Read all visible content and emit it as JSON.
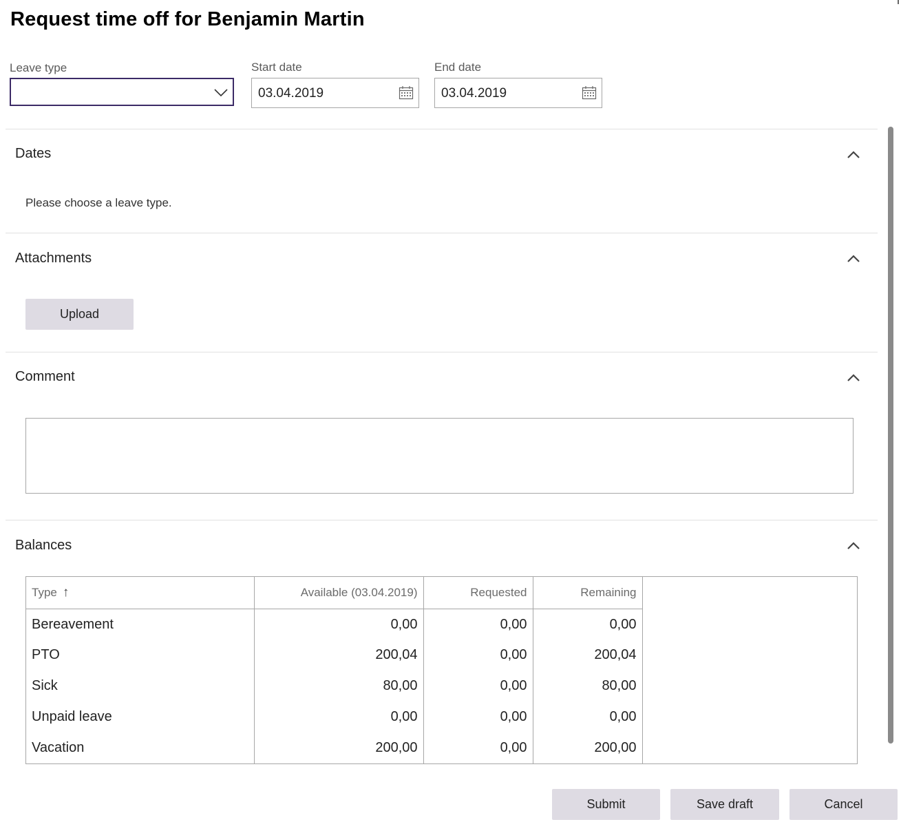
{
  "page": {
    "title": "Request time off for Benjamin Martin"
  },
  "form": {
    "leave_type_label": "Leave type",
    "leave_type_value": "",
    "start_date_label": "Start date",
    "start_date_value": "03.04.2019",
    "end_date_label": "End date",
    "end_date_value": "03.04.2019"
  },
  "sections": {
    "dates": {
      "title": "Dates",
      "message": "Please choose a leave type."
    },
    "attachments": {
      "title": "Attachments",
      "upload_label": "Upload"
    },
    "comment": {
      "title": "Comment",
      "value": ""
    },
    "balances": {
      "title": "Balances"
    }
  },
  "balances_table": {
    "columns": [
      "Type",
      "Available (03.04.2019)",
      "Requested",
      "Remaining"
    ],
    "rows": [
      {
        "type": "Bereavement",
        "available": "0,00",
        "requested": "0,00",
        "remaining": "0,00"
      },
      {
        "type": "PTO",
        "available": "200,04",
        "requested": "0,00",
        "remaining": "200,04"
      },
      {
        "type": "Sick",
        "available": "80,00",
        "requested": "0,00",
        "remaining": "80,00"
      },
      {
        "type": "Unpaid leave",
        "available": "0,00",
        "requested": "0,00",
        "remaining": "0,00"
      },
      {
        "type": "Vacation",
        "available": "200,00",
        "requested": "0,00",
        "remaining": "200,00"
      }
    ]
  },
  "actions": {
    "submit": "Submit",
    "save_draft": "Save draft",
    "cancel": "Cancel"
  },
  "icons": {
    "dropdown": "chevron-down-icon",
    "calendar": "calendar-icon",
    "collapse": "chevron-up-icon",
    "sort": "sort-ascending-icon"
  },
  "colors": {
    "accent": "#3b2a66",
    "button_bg": "#dedbe3",
    "border": "#a6a6a6"
  }
}
